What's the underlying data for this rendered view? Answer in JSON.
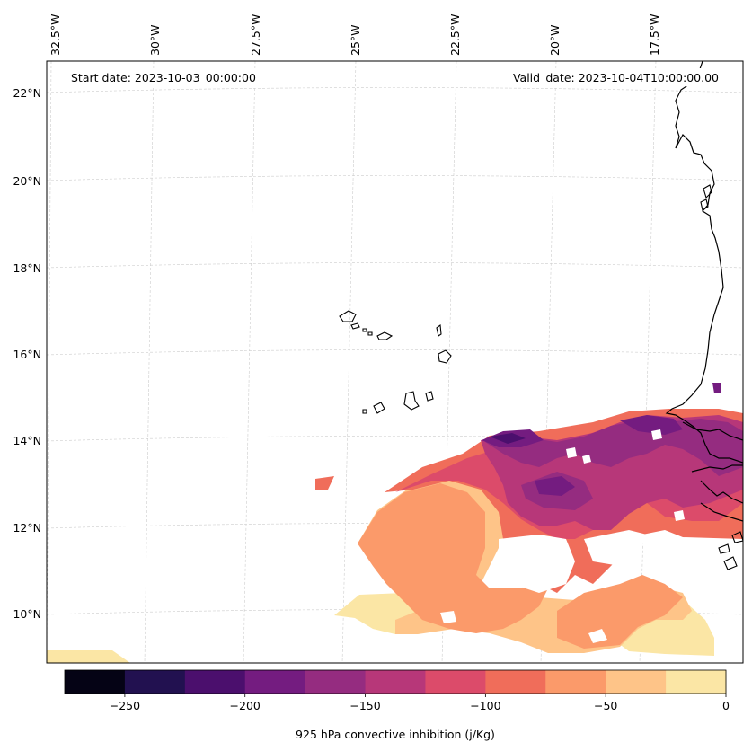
{
  "figure": {
    "start_date": "Start date: 2023-10-03_00:00:00",
    "valid_date": "Valid_date: 2023-10-04T10:00:00.00"
  },
  "axes": {
    "lon_labels": [
      "32.5°W",
      "30°W",
      "27.5°W",
      "25°W",
      "22.5°W",
      "20°W",
      "17.5°W"
    ],
    "lat_labels": [
      "22°N",
      "20°N",
      "18°N",
      "16°N",
      "14°N",
      "12°N",
      "10°N"
    ]
  },
  "colorbar": {
    "label": "925 hPa convective inhibition (j/Kg)",
    "tick_labels": [
      "−250",
      "−200",
      "−150",
      "−100",
      "−50",
      "0"
    ],
    "colors": [
      "#050315",
      "#221150",
      "#4b0f6d",
      "#741c80",
      "#952c80",
      "#b73779",
      "#dc4b6a",
      "#f06d5a",
      "#fb9a6a",
      "#fec488",
      "#fbe6a5"
    ],
    "colormap": "magma"
  },
  "chart_data": {
    "type": "heatmap",
    "title": "925 hPa convective inhibition (j/Kg)",
    "variable": "925 hPa convective inhibition",
    "units": "j/Kg",
    "start_date": "2023-10-03_00:00:00",
    "valid_date": "2023-10-04T10:00:00.00",
    "lon_range": [
      -33,
      -15.5
    ],
    "lat_range": [
      9,
      22.8
    ],
    "levels": [
      -275,
      -250,
      -225,
      -200,
      -175,
      -150,
      -125,
      -100,
      -75,
      -50,
      -25,
      0
    ],
    "colorbar_ticks": [
      -250,
      -200,
      -150,
      -100,
      -50,
      0
    ]
  }
}
